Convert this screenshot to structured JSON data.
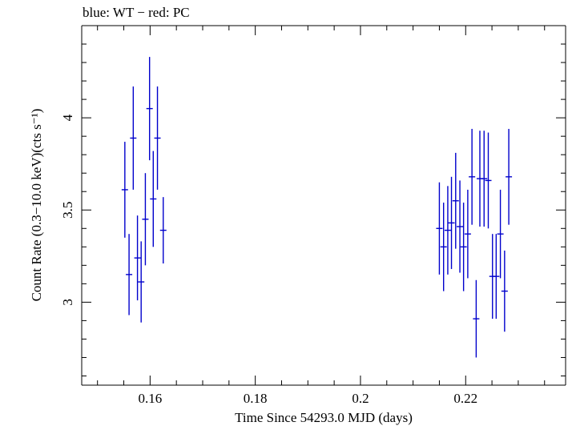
{
  "chart_data": {
    "type": "scatter",
    "title": "blue: WT − red: PC",
    "xlabel": "Time Since 54293.0 MJD (days)",
    "ylabel": "Count Rate (0.3−10.0 keV)(cts s⁻¹)",
    "xlim": [
      0.147,
      0.239
    ],
    "ylim": [
      2.55,
      4.5
    ],
    "xticks": [
      0.16,
      0.18,
      0.2,
      0.22
    ],
    "xtick_labels": [
      "0.16",
      "0.18",
      "0.2",
      "0.22"
    ],
    "yticks": [
      3,
      3.5,
      4
    ],
    "ytick_labels": [
      "3",
      "3.5",
      "4"
    ],
    "grid": false,
    "series": [
      {
        "color": "#0000cc",
        "points": [
          {
            "x": 0.1552,
            "y": 3.61,
            "yerr": 0.26
          },
          {
            "x": 0.156,
            "y": 3.15,
            "yerr": 0.22
          },
          {
            "x": 0.1568,
            "y": 3.89,
            "yerr": 0.28
          },
          {
            "x": 0.1576,
            "y": 3.24,
            "yerr": 0.23
          },
          {
            "x": 0.1583,
            "y": 3.11,
            "yerr": 0.22
          },
          {
            "x": 0.1591,
            "y": 3.45,
            "yerr": 0.25
          },
          {
            "x": 0.1599,
            "y": 4.05,
            "yerr": 0.28
          },
          {
            "x": 0.1606,
            "y": 3.56,
            "yerr": 0.26
          },
          {
            "x": 0.1614,
            "y": 3.89,
            "yerr": 0.28
          },
          {
            "x": 0.1625,
            "y": 3.39,
            "yerr": 0.18
          },
          {
            "x": 0.215,
            "y": 3.4,
            "yerr": 0.25
          },
          {
            "x": 0.2158,
            "y": 3.3,
            "yerr": 0.24
          },
          {
            "x": 0.2166,
            "y": 3.39,
            "yerr": 0.24
          },
          {
            "x": 0.2173,
            "y": 3.43,
            "yerr": 0.25
          },
          {
            "x": 0.2181,
            "y": 3.55,
            "yerr": 0.26
          },
          {
            "x": 0.2189,
            "y": 3.41,
            "yerr": 0.25
          },
          {
            "x": 0.2196,
            "y": 3.3,
            "yerr": 0.24
          },
          {
            "x": 0.2204,
            "y": 3.37,
            "yerr": 0.24
          },
          {
            "x": 0.2212,
            "y": 3.68,
            "yerr": 0.26
          },
          {
            "x": 0.222,
            "y": 2.91,
            "yerr": 0.21
          },
          {
            "x": 0.2227,
            "y": 3.67,
            "yerr": 0.26
          },
          {
            "x": 0.2235,
            "y": 3.67,
            "yerr": 0.26
          },
          {
            "x": 0.2243,
            "y": 3.66,
            "yerr": 0.26
          },
          {
            "x": 0.2251,
            "y": 3.14,
            "yerr": 0.23
          },
          {
            "x": 0.2258,
            "y": 3.14,
            "yerr": 0.23
          },
          {
            "x": 0.2266,
            "y": 3.37,
            "yerr": 0.24
          },
          {
            "x": 0.2274,
            "y": 3.06,
            "yerr": 0.22
          },
          {
            "x": 0.2282,
            "y": 3.68,
            "yerr": 0.26
          }
        ]
      }
    ]
  }
}
